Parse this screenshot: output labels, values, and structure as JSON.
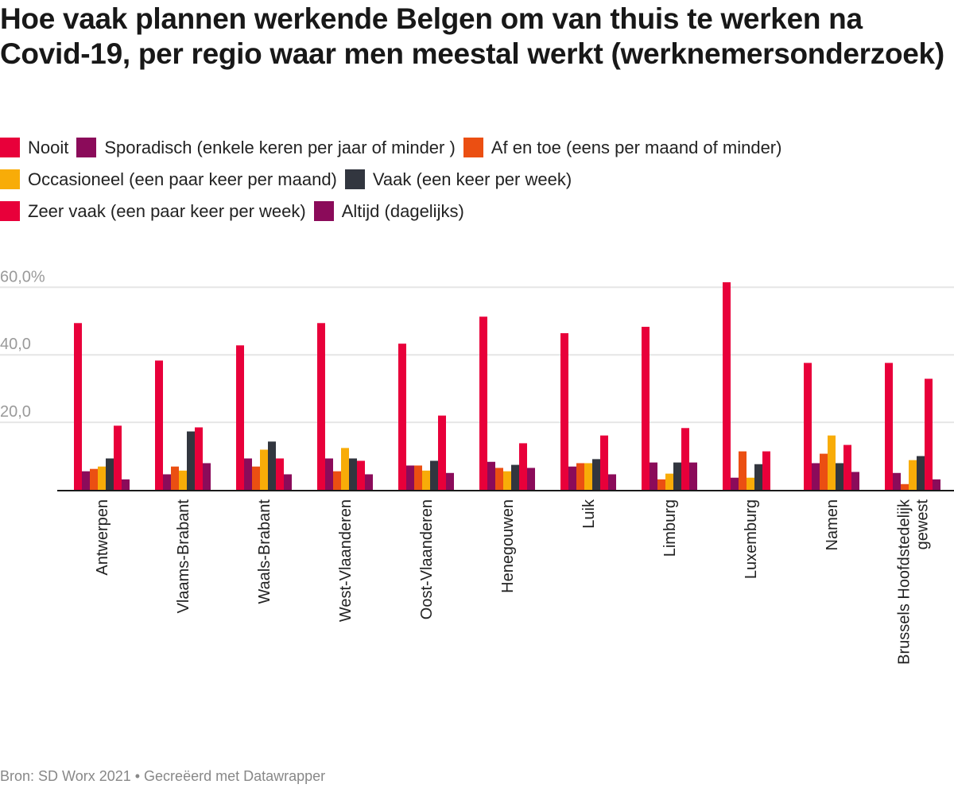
{
  "title": "Hoe vaak plannen werkende Belgen om van thuis te werken na Covid-19, per regio waar men meestal werkt (werknemersonderzoek)",
  "footer": "Bron: SD Worx 2021 • Gecreëerd met Datawrapper",
  "chart_data": {
    "type": "bar",
    "title": "Hoe vaak plannen werkende Belgen om van thuis te werken na Covid-19, per regio waar men meestal werkt (werknemersonderzoek)",
    "ylim": [
      0,
      60
    ],
    "yticks": [
      {
        "v": 20,
        "label": "20,0"
      },
      {
        "v": 40,
        "label": "40,0"
      },
      {
        "v": 60,
        "label": "60,0%"
      }
    ],
    "grid": true,
    "legend_position": "top",
    "categories": [
      [
        "Antwerpen"
      ],
      [
        "Vlaams-Brabant"
      ],
      [
        "Waals-Brabant"
      ],
      [
        "West-Vlaanderen"
      ],
      [
        "Oost-Vlaanderen"
      ],
      [
        "Henegouwen"
      ],
      [
        "Luik"
      ],
      [
        "Limburg"
      ],
      [
        "Luxemburg"
      ],
      [
        "Namen"
      ],
      [
        "Brussels Hoofdstedelijk",
        "gewest"
      ]
    ],
    "series": [
      {
        "name": "Nooit",
        "color": "#e8003a",
        "values": [
          49.4,
          38.3,
          42.8,
          49.4,
          43.3,
          51.3,
          46.4,
          48.3,
          61.5,
          37.6,
          37.6
        ]
      },
      {
        "name": "Sporadisch (enkele keren per jaar of minder )",
        "color": "#8b0b5a",
        "values": [
          5.5,
          4.6,
          9.3,
          9.3,
          7.2,
          8.3,
          6.9,
          8.1,
          3.6,
          7.9,
          5.0
        ]
      },
      {
        "name": "Af en toe (eens per maand of minder)",
        "color": "#eb4f12",
        "values": [
          6.2,
          6.9,
          6.9,
          5.5,
          7.2,
          6.5,
          7.9,
          3.1,
          11.4,
          10.7,
          1.7
        ]
      },
      {
        "name": "Occasioneel (een paar keer per maand)",
        "color": "#f8ac08",
        "values": [
          6.9,
          5.7,
          11.9,
          12.4,
          5.7,
          5.5,
          7.9,
          4.8,
          3.6,
          16.1,
          8.8
        ]
      },
      {
        "name": "Vaak (een keer per week)",
        "color": "#32363f",
        "values": [
          9.3,
          17.3,
          14.3,
          9.3,
          8.6,
          7.4,
          9.1,
          8.1,
          7.6,
          7.9,
          10.0
        ]
      },
      {
        "name": "Zeer vaak (een paar keer per week)",
        "color": "#e8003a",
        "values": [
          19.0,
          18.5,
          9.3,
          8.6,
          22.0,
          13.8,
          16.1,
          18.3,
          11.4,
          13.3,
          32.9
        ]
      },
      {
        "name": "Altijd (dagelijks)",
        "color": "#8b0b5a",
        "values": [
          3.1,
          7.9,
          4.6,
          4.6,
          5.0,
          6.5,
          4.6,
          8.1,
          0,
          5.3,
          3.1
        ]
      }
    ]
  }
}
